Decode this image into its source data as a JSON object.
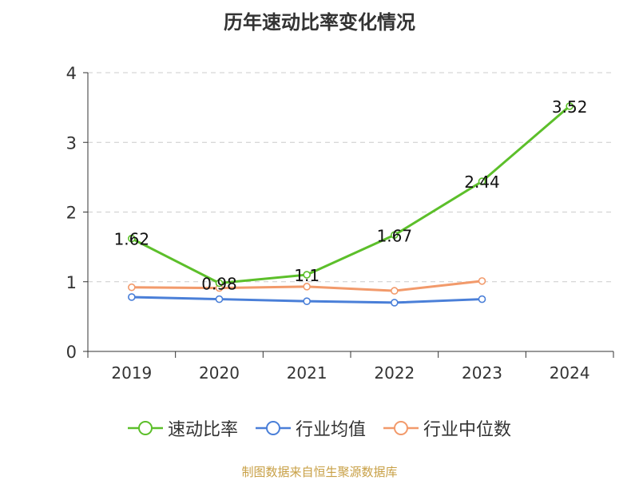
{
  "chart_data": {
    "type": "line",
    "title": "历年速动比率变化情况",
    "categories": [
      "2019",
      "2020",
      "2021",
      "2022",
      "2023",
      "2024"
    ],
    "ylim": [
      0,
      4
    ],
    "yticks": [
      0,
      1,
      2,
      3,
      4
    ],
    "grid": true,
    "legend_position": "bottom",
    "series": [
      {
        "name": "速动比率",
        "color": "#5cbf2a",
        "values": [
          1.62,
          0.98,
          1.1,
          1.67,
          2.44,
          3.52
        ],
        "labels": [
          "1.62",
          "0.98",
          "1.1",
          "1.67",
          "2.44",
          "3.52"
        ]
      },
      {
        "name": "行业均值",
        "color": "#4a7fd8",
        "values": [
          0.78,
          0.75,
          0.72,
          0.7,
          0.75,
          null
        ]
      },
      {
        "name": "行业中位数",
        "color": "#f29a6b",
        "values": [
          0.92,
          0.91,
          0.93,
          0.87,
          1.01,
          null
        ]
      }
    ]
  },
  "source": "制图数据来自恒生聚源数据库"
}
